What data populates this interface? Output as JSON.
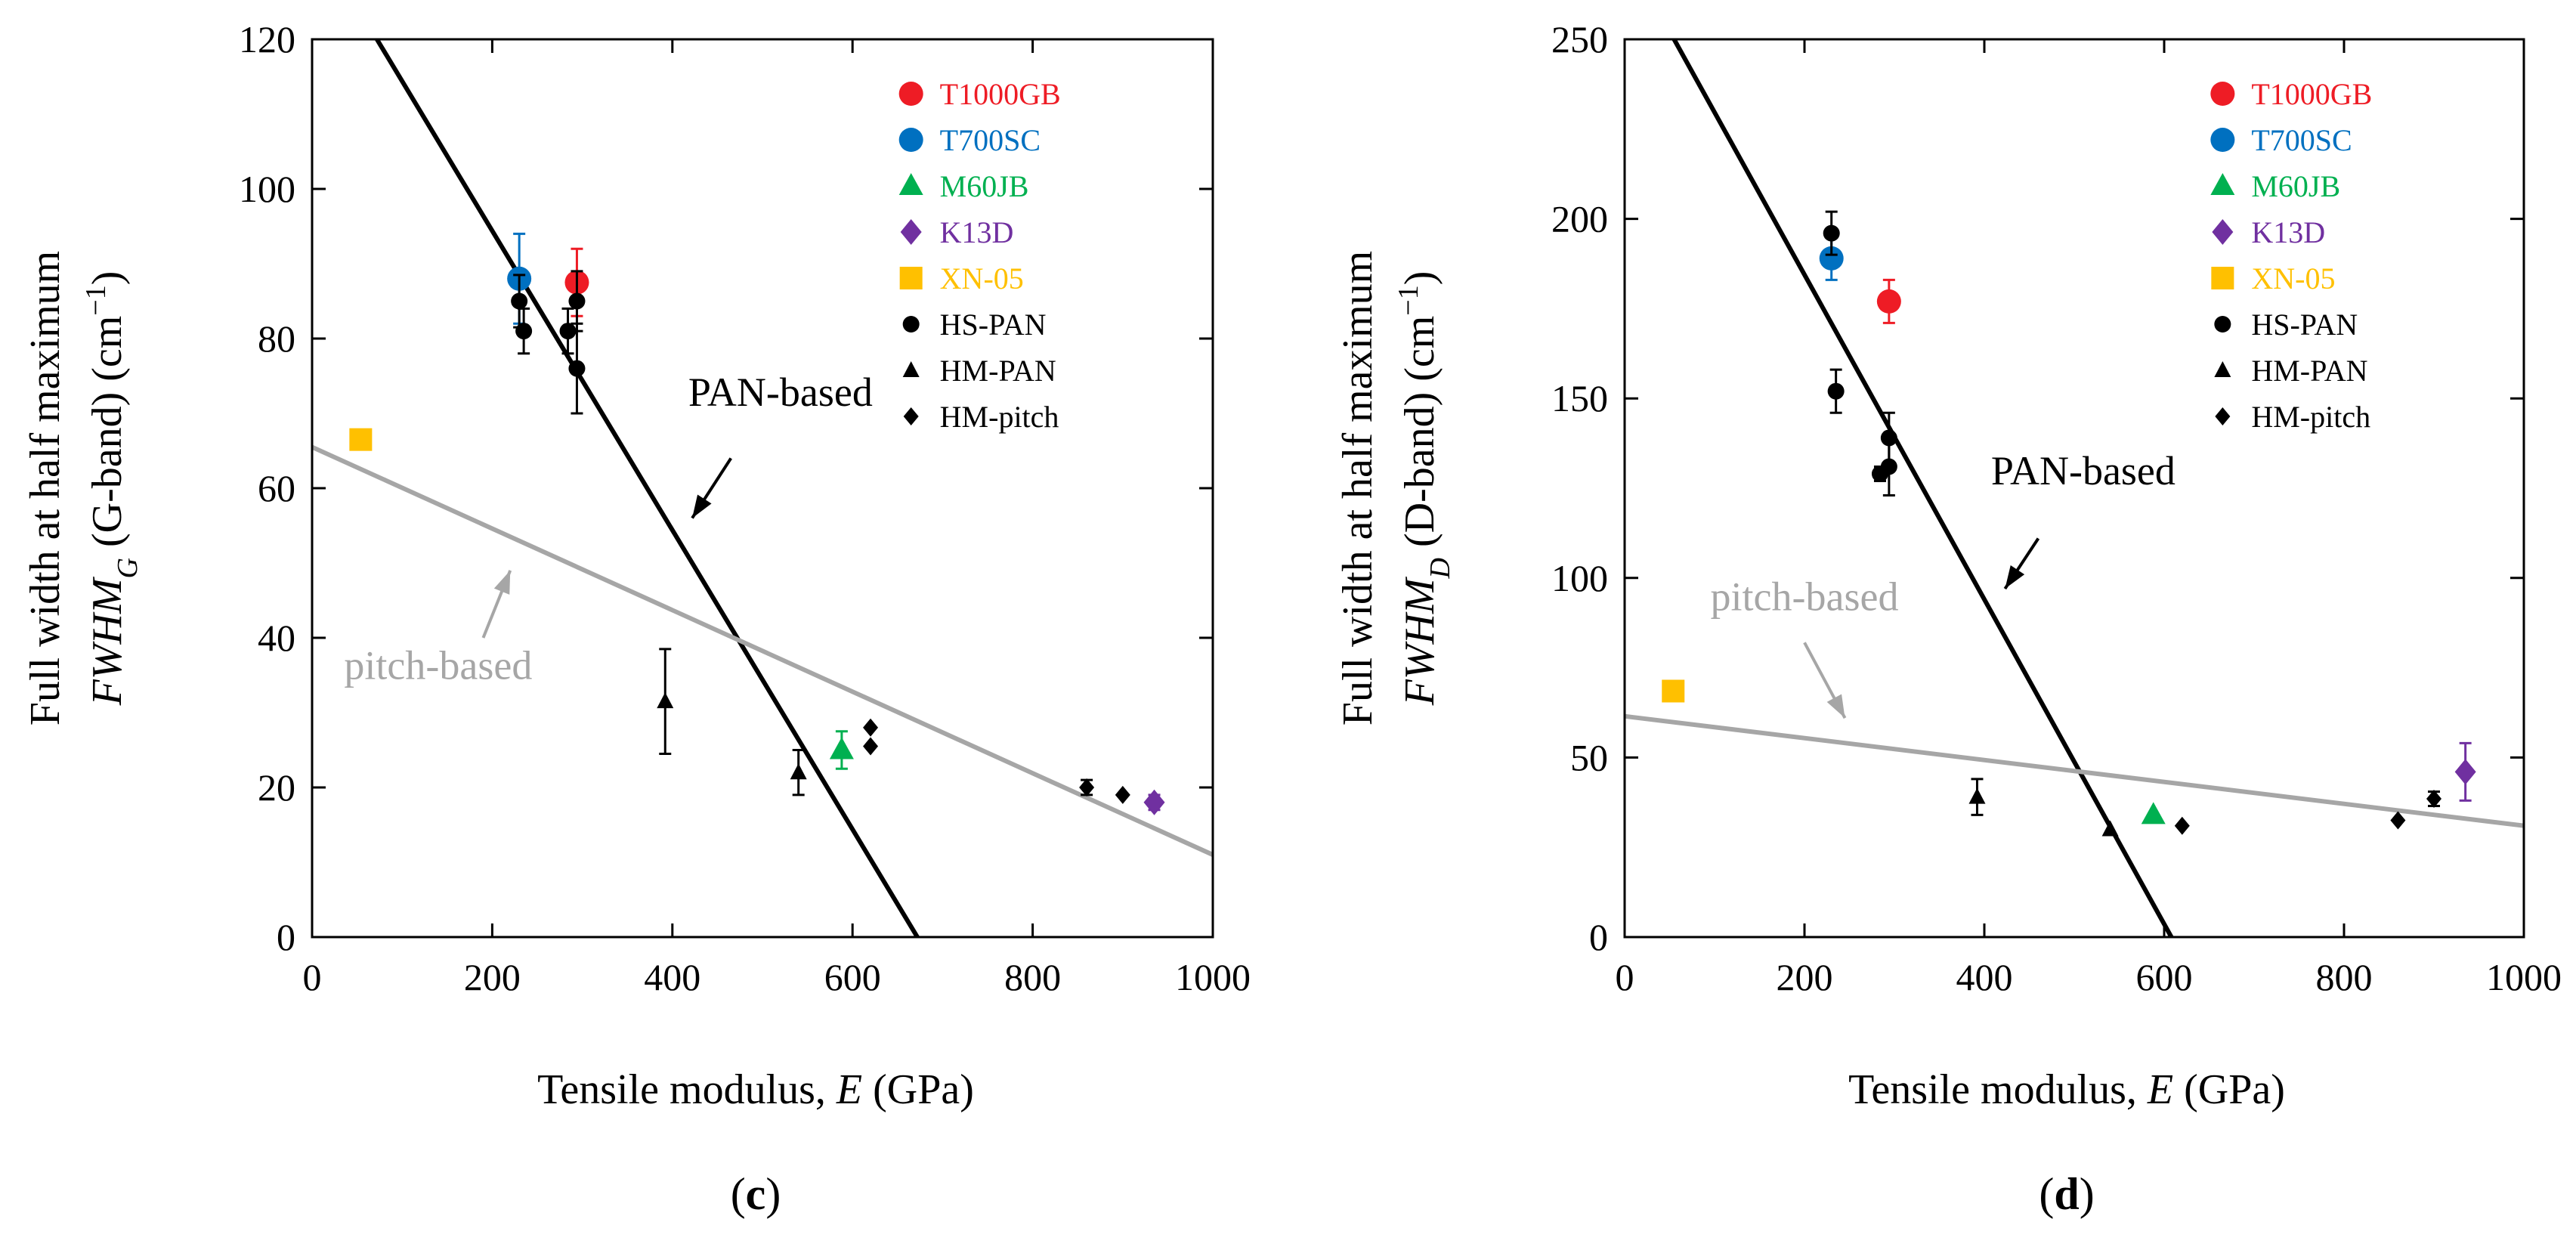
{
  "chart_data": [
    {
      "type": "scatter",
      "panel_label": "c",
      "xlabel": "Tensile modulus, E (GPa)",
      "xlabel_parts": [
        "Tensile modulus, ",
        "E",
        " (GPa)"
      ],
      "ylabel_line1": "Full width at half maximum",
      "ylabel_parts": [
        "FWHM",
        "G",
        " (G-band) (cm",
        "−1",
        ")"
      ],
      "xlim": [
        0,
        1000
      ],
      "ylim": [
        0,
        120
      ],
      "xticks": [
        0,
        200,
        400,
        600,
        800,
        1000
      ],
      "yticks": [
        0,
        20,
        40,
        60,
        80,
        100,
        120
      ],
      "legend_position": "top-right",
      "legend": [
        {
          "label": "T1000GB",
          "marker": "circle",
          "color": "#ee1c25"
        },
        {
          "label": "T700SC",
          "marker": "circle",
          "color": "#0070c0"
        },
        {
          "label": "M60JB",
          "marker": "triangle",
          "color": "#00b050"
        },
        {
          "label": "K13D",
          "marker": "diamond",
          "color": "#7030a0"
        },
        {
          "label": "XN-05",
          "marker": "square",
          "color": "#ffc000"
        },
        {
          "label": "HS-PAN",
          "marker": "circle-small",
          "color": "#000000"
        },
        {
          "label": "HM-PAN",
          "marker": "triangle-small",
          "color": "#000000"
        },
        {
          "label": "HM-pitch",
          "marker": "diamond-small",
          "color": "#000000"
        }
      ],
      "series": [
        {
          "name": "T1000GB",
          "marker": "circle",
          "color": "#ee1c25",
          "points": [
            {
              "x": 294,
              "y": 87.5,
              "err": 4.5
            }
          ]
        },
        {
          "name": "T700SC",
          "marker": "circle",
          "color": "#0070c0",
          "points": [
            {
              "x": 230,
              "y": 88,
              "err": 6
            }
          ]
        },
        {
          "name": "M60JB",
          "marker": "triangle",
          "color": "#00b050",
          "points": [
            {
              "x": 588,
              "y": 25,
              "err": 2.5
            }
          ]
        },
        {
          "name": "K13D",
          "marker": "diamond",
          "color": "#7030a0",
          "points": [
            {
              "x": 935,
              "y": 18,
              "err": 1
            }
          ]
        },
        {
          "name": "XN-05",
          "marker": "square",
          "color": "#ffc000",
          "points": [
            {
              "x": 54,
              "y": 66.5,
              "err": 0
            }
          ]
        },
        {
          "name": "HS-PAN",
          "marker": "circle-small",
          "color": "#000000",
          "points": [
            {
              "x": 230,
              "y": 85,
              "err": 3.5
            },
            {
              "x": 235,
              "y": 81,
              "err": 3
            },
            {
              "x": 284,
              "y": 81,
              "err": 3
            },
            {
              "x": 294,
              "y": 85,
              "err": 4
            },
            {
              "x": 294,
              "y": 76,
              "err": 6
            }
          ]
        },
        {
          "name": "HM-PAN",
          "marker": "triangle-small",
          "color": "#000000",
          "points": [
            {
              "x": 392,
              "y": 31.5,
              "err": 7
            },
            {
              "x": 540,
              "y": 22,
              "err": 3
            }
          ]
        },
        {
          "name": "HM-pitch",
          "marker": "diamond-small",
          "color": "#000000",
          "points": [
            {
              "x": 620,
              "y": 28,
              "err": 0
            },
            {
              "x": 620,
              "y": 25.5,
              "err": 0
            },
            {
              "x": 860,
              "y": 20,
              "err": 1
            },
            {
              "x": 900,
              "y": 19,
              "err": 0
            }
          ]
        }
      ],
      "trend_lines": [
        {
          "name": "PAN-based",
          "color": "#000000",
          "x1": 72,
          "y1": 120,
          "x2": 672,
          "y2": 0
        },
        {
          "name": "pitch-based",
          "color": "#a6a6a6",
          "x1": 0,
          "y1": 65.5,
          "x2": 1000,
          "y2": 11
        }
      ],
      "annotations": [
        {
          "text": "PAN-based",
          "color": "#000000",
          "text_x": 520,
          "text_y": 71,
          "arrow_from": [
            465,
            64
          ],
          "arrow_to": [
            422,
            56
          ]
        },
        {
          "text": "pitch-based",
          "color": "#a6a6a6",
          "text_x": 140,
          "text_y": 34.5,
          "arrow_from": [
            190,
            40
          ],
          "arrow_to": [
            220,
            49
          ]
        }
      ]
    },
    {
      "type": "scatter",
      "panel_label": "d",
      "xlabel": "Tensile modulus, E (GPa)",
      "xlabel_parts": [
        "Tensile modulus, ",
        "E",
        " (GPa)"
      ],
      "ylabel_line1": "Full width at half maximum",
      "ylabel_parts": [
        "FWHM",
        "D",
        " (D-band) (cm",
        "−1",
        ")"
      ],
      "xlim": [
        0,
        1000
      ],
      "ylim": [
        0,
        250
      ],
      "xticks": [
        0,
        200,
        400,
        600,
        800,
        1000
      ],
      "yticks": [
        0,
        50,
        100,
        150,
        200,
        250
      ],
      "legend_position": "top-right",
      "legend": [
        {
          "label": "T1000GB",
          "marker": "circle",
          "color": "#ee1c25"
        },
        {
          "label": "T700SC",
          "marker": "circle",
          "color": "#0070c0"
        },
        {
          "label": "M60JB",
          "marker": "triangle",
          "color": "#00b050"
        },
        {
          "label": "K13D",
          "marker": "diamond",
          "color": "#7030a0"
        },
        {
          "label": "XN-05",
          "marker": "square",
          "color": "#ffc000"
        },
        {
          "label": "HS-PAN",
          "marker": "circle-small",
          "color": "#000000"
        },
        {
          "label": "HM-PAN",
          "marker": "triangle-small",
          "color": "#000000"
        },
        {
          "label": "HM-pitch",
          "marker": "diamond-small",
          "color": "#000000"
        }
      ],
      "series": [
        {
          "name": "T1000GB",
          "marker": "circle",
          "color": "#ee1c25",
          "points": [
            {
              "x": 294,
              "y": 177,
              "err": 6
            }
          ]
        },
        {
          "name": "T700SC",
          "marker": "circle",
          "color": "#0070c0",
          "points": [
            {
              "x": 230,
              "y": 189,
              "err": 6
            }
          ]
        },
        {
          "name": "M60JB",
          "marker": "triangle",
          "color": "#00b050",
          "points": [
            {
              "x": 588,
              "y": 34,
              "err": 0
            }
          ]
        },
        {
          "name": "K13D",
          "marker": "diamond",
          "color": "#7030a0",
          "points": [
            {
              "x": 935,
              "y": 46,
              "err": 8
            }
          ]
        },
        {
          "name": "XN-05",
          "marker": "square",
          "color": "#ffc000",
          "points": [
            {
              "x": 54,
              "y": 68.5,
              "err": 0
            }
          ]
        },
        {
          "name": "HS-PAN",
          "marker": "circle-small",
          "color": "#000000",
          "points": [
            {
              "x": 230,
              "y": 196,
              "err": 6
            },
            {
              "x": 235,
              "y": 152,
              "err": 6
            },
            {
              "x": 284,
              "y": 129,
              "err": 2
            },
            {
              "x": 294,
              "y": 139,
              "err": 7
            },
            {
              "x": 294,
              "y": 131,
              "err": 8
            }
          ]
        },
        {
          "name": "HM-PAN",
          "marker": "triangle-small",
          "color": "#000000",
          "points": [
            {
              "x": 392,
              "y": 39,
              "err": 5
            },
            {
              "x": 540,
              "y": 30,
              "err": 0
            }
          ]
        },
        {
          "name": "HM-pitch",
          "marker": "diamond-small",
          "color": "#000000",
          "points": [
            {
              "x": 620,
              "y": 31,
              "err": 0
            },
            {
              "x": 860,
              "y": 32.5,
              "err": 0
            },
            {
              "x": 900,
              "y": 38.5,
              "err": 2
            }
          ]
        }
      ],
      "trend_lines": [
        {
          "name": "PAN-based",
          "color": "#000000",
          "x1": 55,
          "y1": 250,
          "x2": 608,
          "y2": 0
        },
        {
          "name": "pitch-based",
          "color": "#a6a6a6",
          "x1": 0,
          "y1": 61.5,
          "x2": 1000,
          "y2": 31
        }
      ],
      "annotations": [
        {
          "text": "PAN-based",
          "color": "#000000",
          "text_x": 510,
          "text_y": 126,
          "arrow_from": [
            460,
            111
          ],
          "arrow_to": [
            423,
            97
          ]
        },
        {
          "text": "pitch-based",
          "color": "#a6a6a6",
          "text_x": 200,
          "text_y": 91,
          "arrow_from": [
            200,
            82
          ],
          "arrow_to": [
            245,
            61
          ]
        }
      ]
    }
  ]
}
